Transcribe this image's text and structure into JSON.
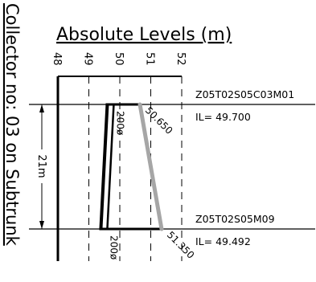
{
  "side_title": "Collector no: 03 on Subtrunk",
  "title": "Absolute Levels (m)",
  "scale": {
    "min": 48,
    "max": 52,
    "ticks": [
      {
        "value": 48,
        "label": "48"
      },
      {
        "value": 49,
        "label": "49"
      },
      {
        "value": 50,
        "label": "50"
      },
      {
        "value": 51,
        "label": "51"
      },
      {
        "value": 52,
        "label": "52"
      }
    ]
  },
  "span": {
    "label": "21m"
  },
  "nodes": [
    {
      "id": "top",
      "name": "Z05T02S05C03M01",
      "il_text": "IL= 49.700",
      "invert_level": 49.7,
      "ground_level": 50.65,
      "ground_label": "50.650",
      "pipe_label": "200ø"
    },
    {
      "id": "bottom",
      "name": "Z05T02S05M09",
      "il_text": "IL= 49.492",
      "invert_level": 49.492,
      "ground_level": 51.35,
      "ground_label": "51.350",
      "pipe_label": "200ø"
    }
  ],
  "colors": {
    "ink": "#000000",
    "ground": "#a6a6a6"
  }
}
